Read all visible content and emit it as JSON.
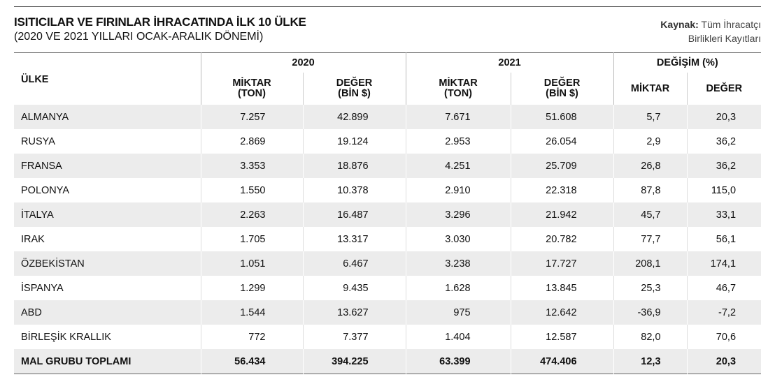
{
  "header": {
    "title": "ISITICILAR VE FIRINLAR İHRACATINDA İLK 10 ÜLKE",
    "subtitle": "(2020 VE 2021 YILLARI OCAK-ARALIK DÖNEMİ)",
    "source_label": "Kaynak:",
    "source_text": "Tüm İhracatçı\nBirlikleri Kayıtları"
  },
  "table": {
    "country_header": "ÜLKE",
    "groups": [
      "2020",
      "2021",
      "DEĞİŞİM (%)"
    ],
    "subheaders": [
      "MİKTAR\n(TON)",
      "DEĞER\n(BİN $)",
      "MİKTAR\n(TON)",
      "DEĞER\n(BİN $)",
      "MİKTAR",
      "DEĞER"
    ],
    "rows": [
      [
        "ALMANYA",
        "7.257",
        "42.899",
        "7.671",
        "51.608",
        "5,7",
        "20,3"
      ],
      [
        "RUSYA",
        "2.869",
        "19.124",
        "2.953",
        "26.054",
        "2,9",
        "36,2"
      ],
      [
        "FRANSA",
        "3.353",
        "18.876",
        "4.251",
        "25.709",
        "26,8",
        "36,2"
      ],
      [
        "POLONYA",
        "1.550",
        "10.378",
        "2.910",
        "22.318",
        "87,8",
        "115,0"
      ],
      [
        "İTALYA",
        "2.263",
        "16.487",
        "3.296",
        "21.942",
        "45,7",
        "33,1"
      ],
      [
        "IRAK",
        "1.705",
        "13.317",
        "3.030",
        "20.782",
        "77,7",
        "56,1"
      ],
      [
        "ÖZBEKİSTAN",
        "1.051",
        "6.467",
        "3.238",
        "17.727",
        "208,1",
        "174,1"
      ],
      [
        "İSPANYA",
        "1.299",
        "9.435",
        "1.628",
        "13.845",
        "25,3",
        "46,7"
      ],
      [
        "ABD",
        "1.544",
        "13.627",
        "975",
        "12.642",
        "-36,9",
        "-7,2"
      ],
      [
        "BİRLEŞİK KRALLIK",
        "772",
        "7.377",
        "1.404",
        "12.587",
        "82,0",
        "70,6"
      ]
    ],
    "total": [
      "MAL GRUBU TOPLAMI",
      "56.434",
      "394.225",
      "63.399",
      "474.406",
      "12,3",
      "20,3"
    ]
  }
}
